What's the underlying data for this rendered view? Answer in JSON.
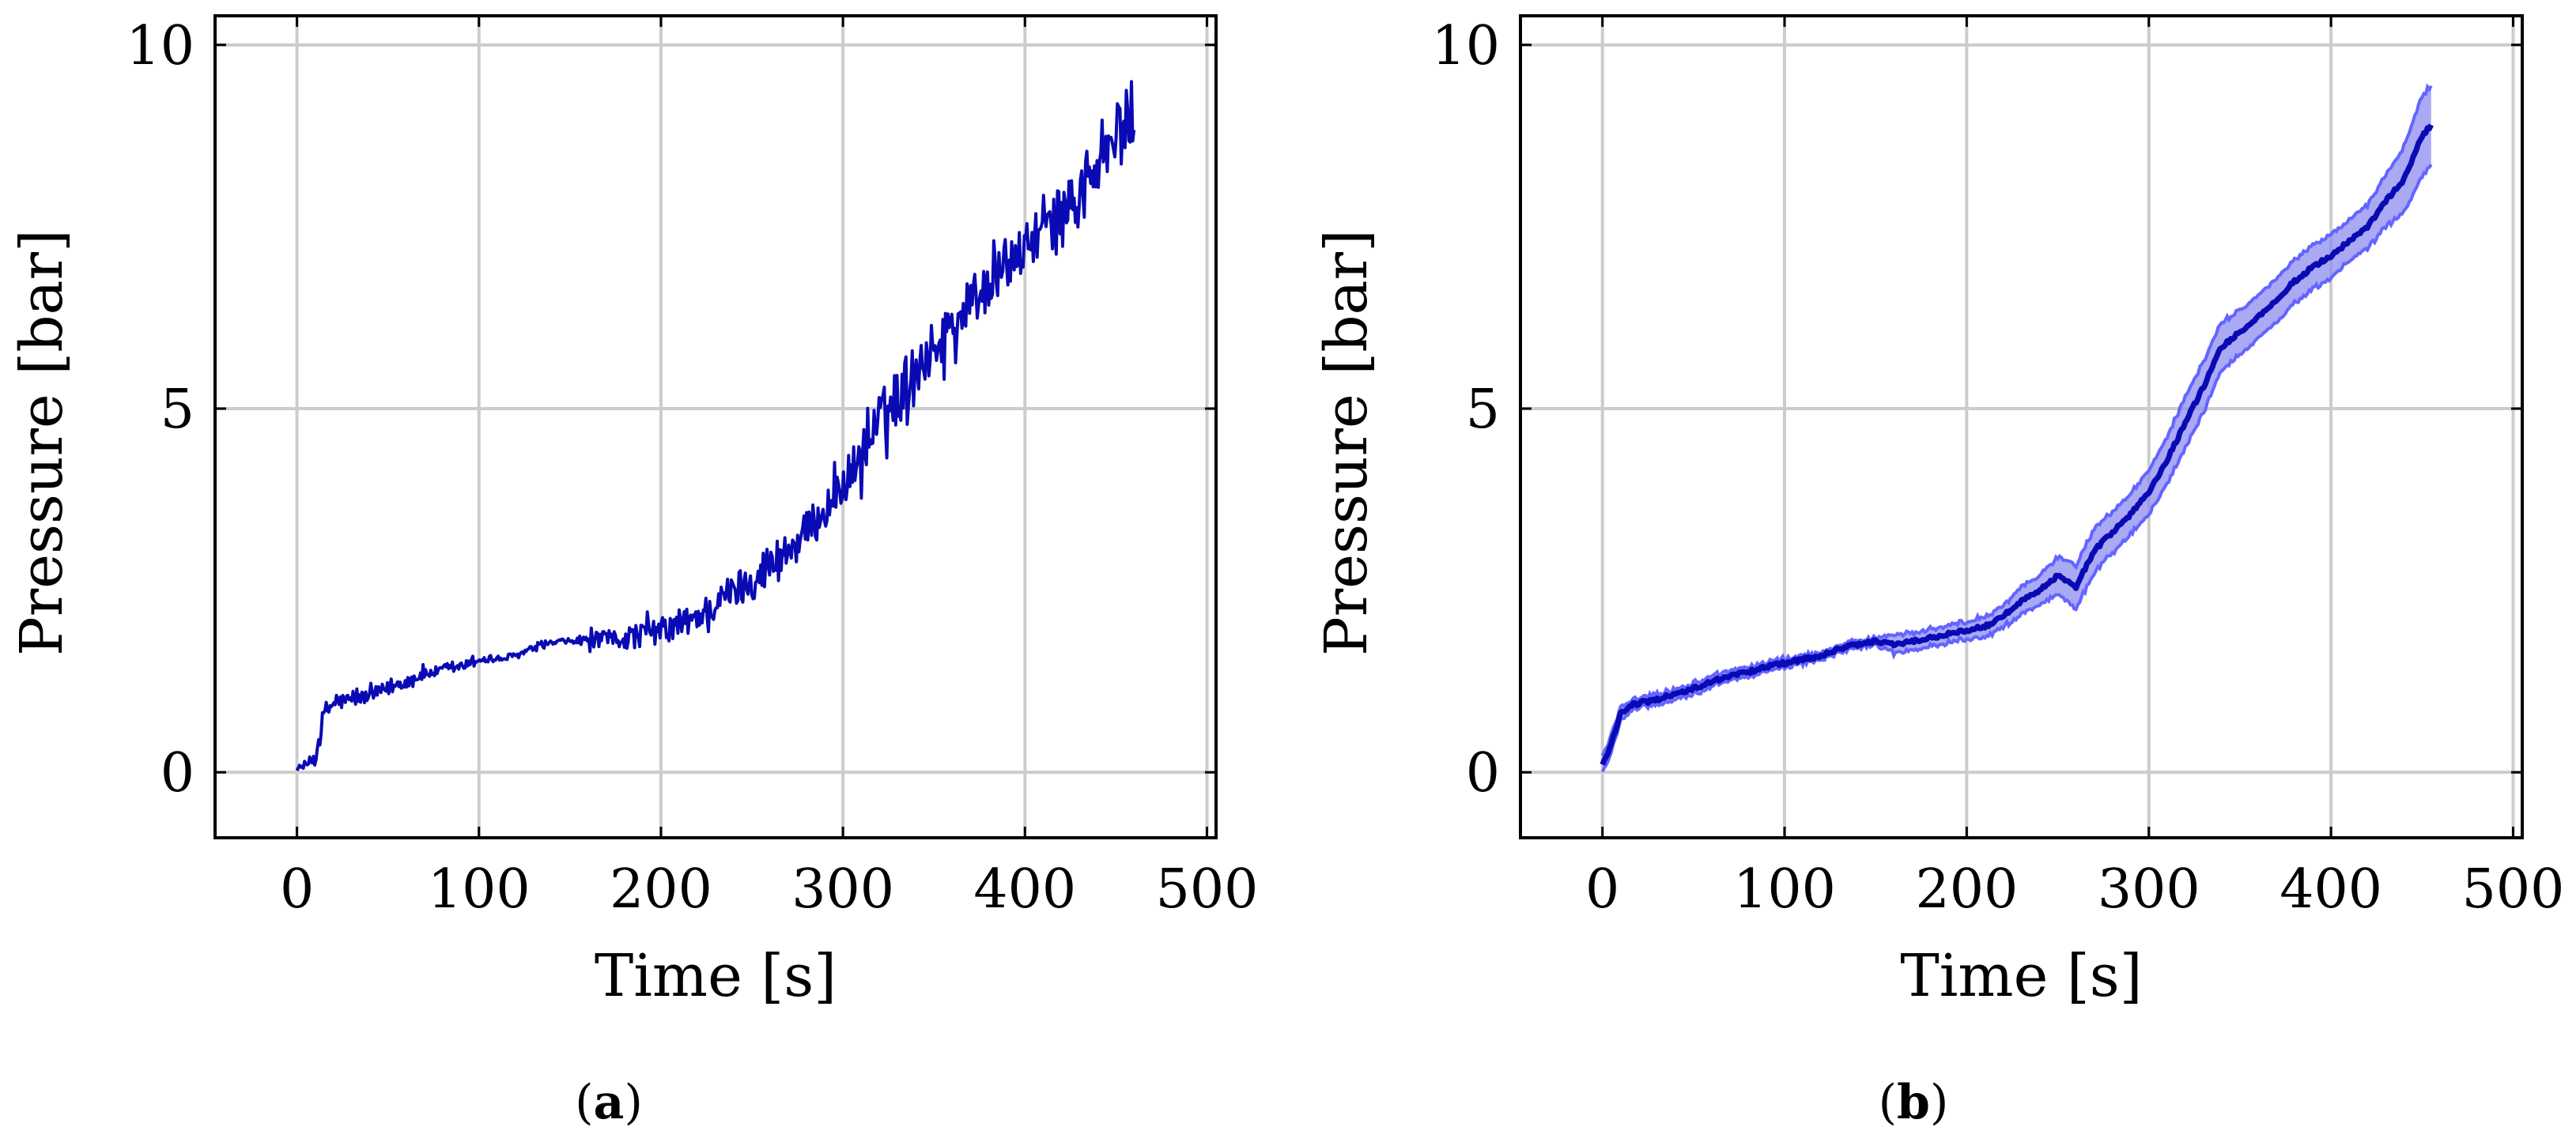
{
  "chart_data": [
    {
      "type": "line",
      "caption": "(a)",
      "xlabel": "Time [s]",
      "ylabel": "Pressure [bar]",
      "xlim": [
        -45,
        505
      ],
      "ylim": [
        -0.9,
        10.4
      ],
      "xticks": [
        0,
        100,
        200,
        300,
        400,
        500
      ],
      "yticks": [
        0,
        5,
        10
      ],
      "grid": true,
      "colors": {
        "line": "#0a0ab4"
      },
      "series": [
        {
          "style": "raw noisy trace",
          "x": [
            0,
            5,
            10,
            15,
            20,
            30,
            40,
            50,
            60,
            70,
            80,
            90,
            100,
            110,
            120,
            130,
            140,
            150,
            160,
            170,
            180,
            190,
            200,
            210,
            220,
            230,
            240,
            250,
            260,
            270,
            280,
            290,
            300,
            310,
            320,
            330,
            340,
            350,
            360,
            370,
            380,
            390,
            400,
            410,
            420,
            430,
            440,
            450,
            460
          ],
          "y": [
            0.05,
            0.1,
            0.2,
            0.8,
            0.95,
            1.0,
            1.05,
            1.15,
            1.25,
            1.35,
            1.4,
            1.45,
            1.55,
            1.55,
            1.6,
            1.7,
            1.78,
            1.8,
            1.82,
            1.82,
            1.85,
            1.9,
            1.95,
            2.0,
            2.15,
            2.3,
            2.5,
            2.65,
            2.85,
            3.05,
            3.3,
            3.6,
            3.95,
            4.35,
            4.8,
            5.2,
            5.55,
            5.85,
            6.15,
            6.45,
            6.7,
            6.95,
            7.2,
            7.45,
            7.7,
            7.95,
            8.3,
            8.7,
            9.1
          ],
          "noise": [
            0.02,
            0.05,
            0.15,
            0.2,
            0.15,
            0.12,
            0.12,
            0.12,
            0.1,
            0.1,
            0.08,
            0.08,
            0.06,
            0.06,
            0.06,
            0.05,
            0.05,
            0.05,
            0.12,
            0.15,
            0.2,
            0.22,
            0.22,
            0.25,
            0.25,
            0.28,
            0.32,
            0.35,
            0.4,
            0.4,
            0.35,
            0.35,
            0.35,
            0.45,
            0.5,
            0.5,
            0.45,
            0.45,
            0.45,
            0.45,
            0.4,
            0.4,
            0.4,
            0.4,
            0.45,
            0.45,
            0.5,
            0.6,
            0.6
          ]
        }
      ]
    },
    {
      "type": "line",
      "caption": "(b)",
      "xlabel": "Time [s]",
      "ylabel": "Pressure [bar]",
      "xlim": [
        -45,
        505
      ],
      "ylim": [
        -0.9,
        10.4
      ],
      "xticks": [
        0,
        100,
        200,
        300,
        400,
        500
      ],
      "yticks": [
        0,
        5,
        10
      ],
      "grid": true,
      "colors": {
        "line": "#0a0ab4",
        "band": "#8c8cf0",
        "band_edge": "#6464ff"
      },
      "series": [
        {
          "style": "smoothed mean with band",
          "x": [
            0,
            5,
            10,
            15,
            20,
            30,
            40,
            50,
            60,
            70,
            80,
            90,
            100,
            110,
            120,
            130,
            140,
            150,
            160,
            170,
            180,
            190,
            200,
            210,
            220,
            230,
            240,
            250,
            260,
            265,
            270,
            280,
            290,
            300,
            310,
            320,
            330,
            340,
            350,
            360,
            370,
            380,
            390,
            400,
            410,
            420,
            430,
            440,
            450,
            455
          ],
          "y": [
            0.1,
            0.4,
            0.8,
            0.92,
            0.95,
            1.0,
            1.08,
            1.15,
            1.25,
            1.32,
            1.38,
            1.45,
            1.5,
            1.55,
            1.6,
            1.7,
            1.76,
            1.8,
            1.75,
            1.8,
            1.85,
            1.9,
            1.95,
            2.0,
            2.15,
            2.35,
            2.5,
            2.7,
            2.55,
            2.8,
            3.05,
            3.3,
            3.55,
            3.85,
            4.3,
            4.8,
            5.3,
            5.85,
            6.05,
            6.25,
            6.5,
            6.75,
            6.95,
            7.1,
            7.3,
            7.5,
            7.85,
            8.15,
            8.75,
            8.9
          ],
          "band": [
            0.1,
            0.12,
            0.1,
            0.07,
            0.07,
            0.07,
            0.07,
            0.07,
            0.07,
            0.07,
            0.07,
            0.06,
            0.06,
            0.05,
            0.05,
            0.05,
            0.05,
            0.05,
            0.12,
            0.12,
            0.12,
            0.12,
            0.12,
            0.14,
            0.15,
            0.18,
            0.2,
            0.25,
            0.3,
            0.3,
            0.3,
            0.28,
            0.28,
            0.3,
            0.32,
            0.35,
            0.35,
            0.33,
            0.3,
            0.3,
            0.3,
            0.3,
            0.3,
            0.3,
            0.28,
            0.3,
            0.35,
            0.45,
            0.55,
            0.55
          ]
        }
      ]
    }
  ]
}
